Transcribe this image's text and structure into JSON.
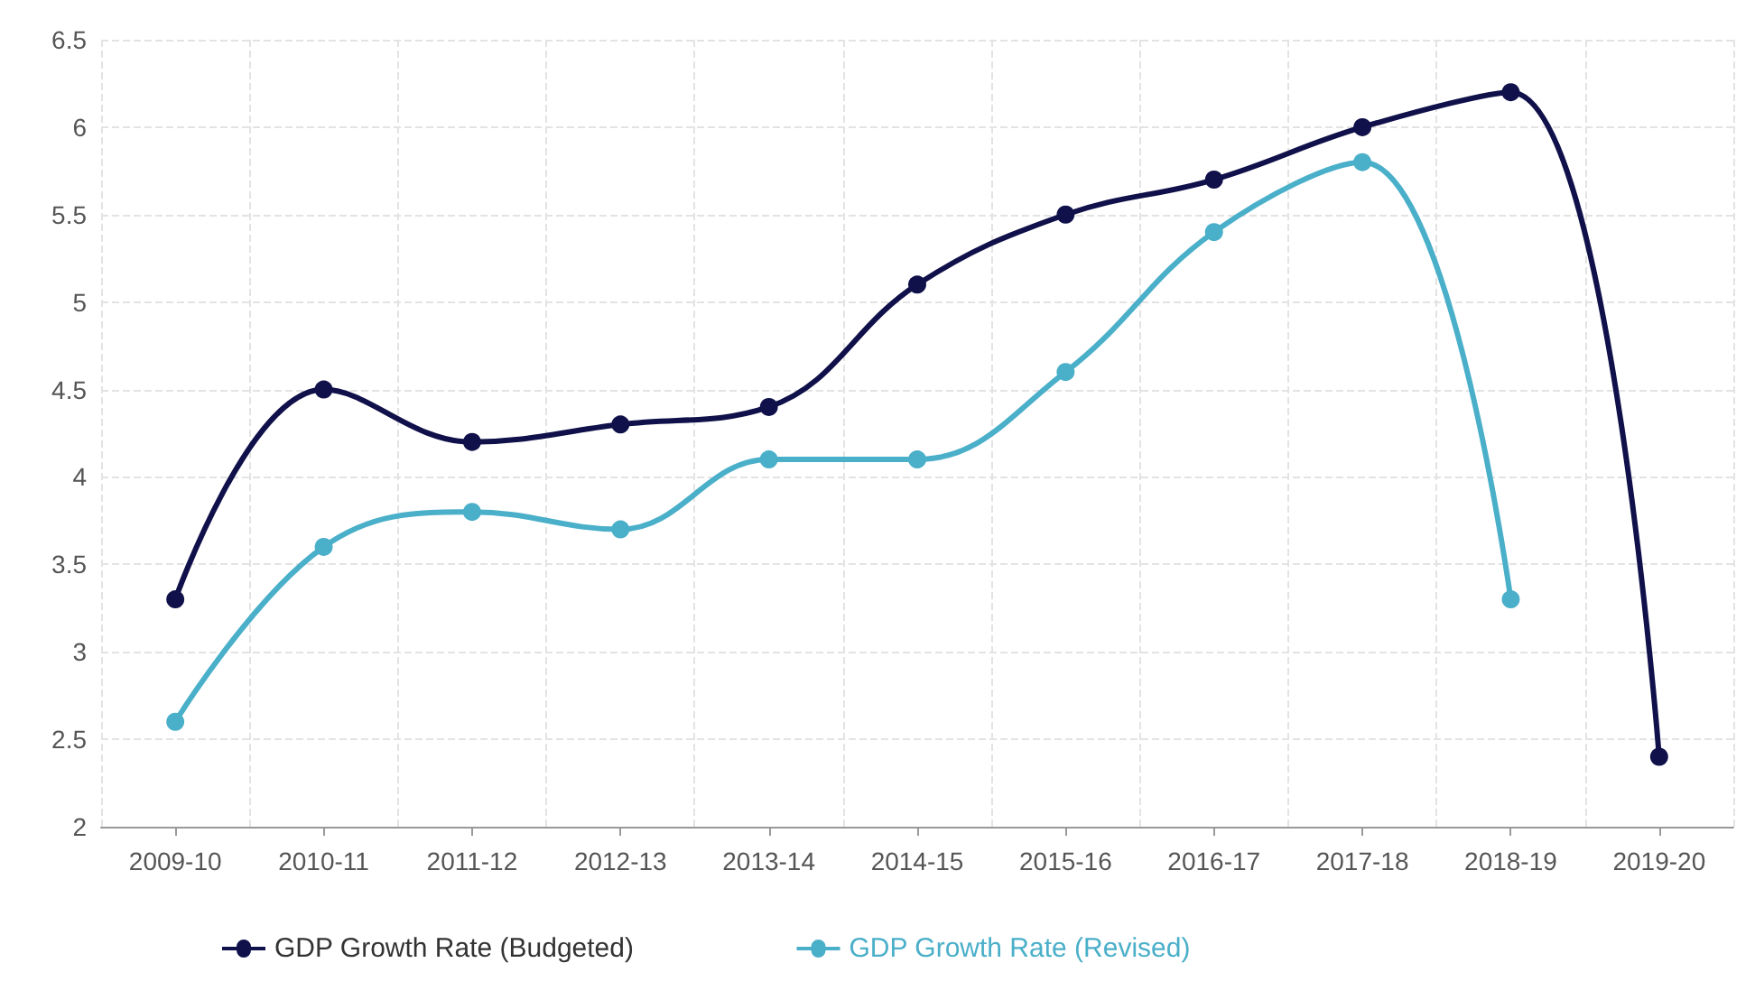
{
  "chart_data": {
    "type": "line",
    "categories": [
      "2009-10",
      "2010-11",
      "2011-12",
      "2012-13",
      "2013-14",
      "2014-15",
      "2015-16",
      "2016-17",
      "2017-18",
      "2018-19",
      "2019-20"
    ],
    "series": [
      {
        "name": "GDP Growth Rate (Budgeted)",
        "color": "#10104a",
        "values": [
          3.3,
          4.5,
          4.2,
          4.3,
          4.4,
          5.1,
          5.5,
          5.7,
          6.0,
          6.2,
          2.4
        ]
      },
      {
        "name": "GDP Growth Rate (Revised)",
        "color": "#4aafc9",
        "values": [
          2.6,
          3.6,
          3.8,
          3.7,
          4.1,
          4.1,
          4.6,
          5.4,
          5.8,
          3.3,
          null
        ]
      }
    ],
    "ylim": [
      2,
      6.5
    ],
    "yticks": [
      2,
      2.5,
      3,
      3.5,
      4,
      4.5,
      5,
      5.5,
      6,
      6.5
    ],
    "grid": true,
    "legend": "bottom left",
    "marker": "circle",
    "line_style": "solid"
  }
}
